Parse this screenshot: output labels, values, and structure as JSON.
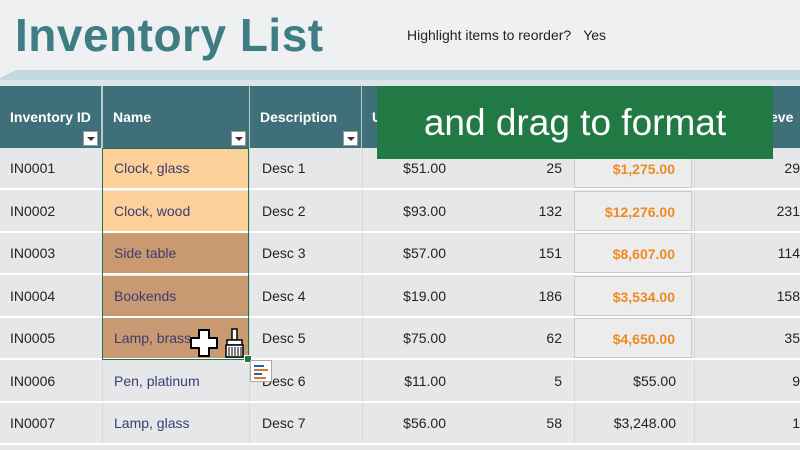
{
  "page": {
    "title": "Inventory List",
    "reorder_label": "Highlight items to reorder?",
    "reorder_value": "Yes"
  },
  "columns": {
    "id": "Inventory ID",
    "name": "Name",
    "description": "Description",
    "price_partial": "U",
    "level_partial": "eve"
  },
  "callout": "and drag to format",
  "colors": {
    "title": "#3d7d83",
    "header_bg": "#3f6f79",
    "highlight_value": "#ee8a1f",
    "name_fill_light": "#fdd09a",
    "name_fill_dark": "#c99a72",
    "callout_bg": "#217a44"
  },
  "icons": [
    "dropdown-arrow-icon",
    "format-painter-brush-icon",
    "plus-cursor-icon",
    "paste-options-icon"
  ],
  "rows": [
    {
      "id": "IN0001",
      "name": "Clock, glass",
      "desc": "Desc 1",
      "price": "$51.00",
      "qty": "25",
      "value": "$1,275.00",
      "level": "29"
    },
    {
      "id": "IN0002",
      "name": "Clock, wood",
      "desc": "Desc 2",
      "price": "$93.00",
      "qty": "132",
      "value": "$12,276.00",
      "level": "231"
    },
    {
      "id": "IN0003",
      "name": "Side table",
      "desc": "Desc 3",
      "price": "$57.00",
      "qty": "151",
      "value": "$8,607.00",
      "level": "114"
    },
    {
      "id": "IN0004",
      "name": "Bookends",
      "desc": "Desc 4",
      "price": "$19.00",
      "qty": "186",
      "value": "$3,534.00",
      "level": "158"
    },
    {
      "id": "IN0005",
      "name": "Lamp, brass",
      "desc": "Desc 5",
      "price": "$75.00",
      "qty": "62",
      "value": "$4,650.00",
      "level": "35"
    },
    {
      "id": "IN0006",
      "name": "Pen, platinum",
      "desc": "Desc 6",
      "price": "$11.00",
      "qty": "5",
      "value": "$55.00",
      "level": "9"
    },
    {
      "id": "IN0007",
      "name": "Lamp, glass",
      "desc": "Desc 7",
      "price": "$56.00",
      "qty": "58",
      "value": "$3,248.00",
      "level": "1"
    }
  ]
}
